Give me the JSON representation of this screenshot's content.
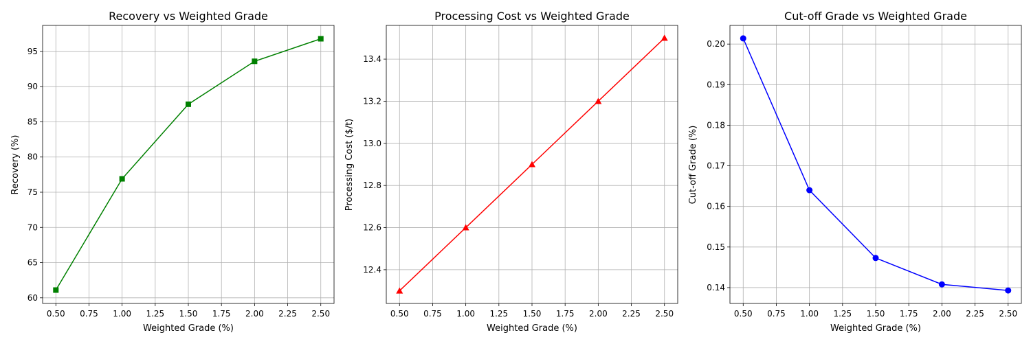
{
  "chart_data": [
    {
      "type": "line",
      "title": "Recovery vs Weighted Grade",
      "xlabel": "Weighted Grade (%)",
      "ylabel": "Recovery (%)",
      "x": [
        0.5,
        1.0,
        1.5,
        2.0,
        2.5
      ],
      "values": [
        61.1,
        76.9,
        87.5,
        93.6,
        96.8
      ],
      "color": "#008000",
      "marker": "square",
      "xlim": [
        0.4,
        2.6
      ],
      "ylim": [
        59.2,
        98.7
      ],
      "xticks": [
        "0.50",
        "0.75",
        "1.00",
        "1.25",
        "1.50",
        "1.75",
        "2.00",
        "2.25",
        "2.50"
      ],
      "yticks": [
        "60",
        "65",
        "70",
        "75",
        "80",
        "85",
        "90",
        "95"
      ],
      "grid": true
    },
    {
      "type": "line",
      "title": "Processing Cost vs Weighted Grade",
      "xlabel": "Weighted Grade (%)",
      "ylabel": "Processing Cost ($/t)",
      "x": [
        0.5,
        1.0,
        1.5,
        2.0,
        2.5
      ],
      "values": [
        12.3,
        12.6,
        12.9,
        13.2,
        13.5
      ],
      "color": "#ff0000",
      "marker": "triangle",
      "xlim": [
        0.4,
        2.6
      ],
      "ylim": [
        12.24,
        13.56
      ],
      "xticks": [
        "0.50",
        "0.75",
        "1.00",
        "1.25",
        "1.50",
        "1.75",
        "2.00",
        "2.25",
        "2.50"
      ],
      "yticks": [
        "12.4",
        "12.6",
        "12.8",
        "13.0",
        "13.2",
        "13.4"
      ],
      "grid": true
    },
    {
      "type": "line",
      "title": "Cut-off Grade vs Weighted Grade",
      "xlabel": "Weighted Grade (%)",
      "ylabel": "Cut-off Grade (%)",
      "x": [
        0.5,
        1.0,
        1.5,
        2.0,
        2.5
      ],
      "values": [
        0.2014,
        0.164,
        0.1473,
        0.1408,
        0.1393
      ],
      "color": "#0000ff",
      "marker": "circle",
      "xlim": [
        0.4,
        2.6
      ],
      "ylim": [
        0.1361,
        0.2046
      ],
      "xticks": [
        "0.50",
        "0.75",
        "1.00",
        "1.25",
        "1.50",
        "1.75",
        "2.00",
        "2.25",
        "2.50"
      ],
      "yticks": [
        "0.14",
        "0.15",
        "0.16",
        "0.17",
        "0.18",
        "0.19",
        "0.20"
      ],
      "grid": true
    }
  ]
}
